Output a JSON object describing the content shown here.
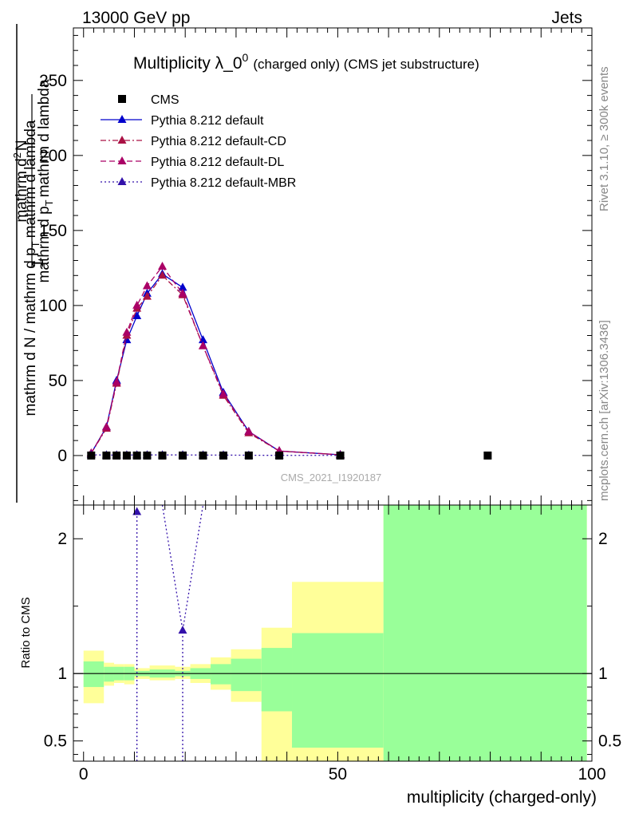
{
  "header": {
    "energy_label": "13000 GeV pp",
    "category_label": "Jets"
  },
  "side_labels": {
    "rivet": "Rivet 3.1.10, ≥ 300k events",
    "mcplots": "mcplots.cern.ch [arXiv:1306.3436]"
  },
  "chart_data": [
    {
      "type": "line",
      "panel": "main",
      "title": "Multiplicity λ_0",
      "title_superscript": "0",
      "title_suffix": "(charged only) (CMS jet substructure)",
      "watermark": "CMS_2021_I1920187",
      "ylabel": {
        "numerator": "1",
        "denominator": "mathrm d N / mathrm d p",
        "denominator_sub": "T",
        "denominator_rest": "mathrm d lambda",
        "frac_numerator": "mathrm d",
        "frac_numerator_sup": "2",
        "frac_numerator_rest": "N",
        "frac_denominator": "mathrm d p",
        "frac_denominator_sub": "T",
        "frac_denominator_rest": "mathrm d lambda"
      },
      "xlim": [
        -2,
        100
      ],
      "ylim": [
        -33,
        285
      ],
      "yticks": [
        0,
        50,
        100,
        150,
        200,
        250
      ],
      "legend": [
        {
          "label": "CMS",
          "style": "data",
          "color": "#000000"
        },
        {
          "label": "Pythia 8.212 default",
          "style": "solid",
          "color": "#0000cc"
        },
        {
          "label": "Pythia 8.212 default-CD",
          "style": "dashdot",
          "color": "#aa1144"
        },
        {
          "label": "Pythia 8.212 default-DL",
          "style": "dashed",
          "color": "#aa0066"
        },
        {
          "label": "Pythia 8.212 default-MBR",
          "style": "dotted",
          "color": "#3311aa"
        }
      ],
      "data_x": [
        1.5,
        4.5,
        6.5,
        8.5,
        10.5,
        12.5,
        15.5,
        19.5,
        23.5,
        27.5,
        32.5,
        38.5,
        50.5,
        79.5
      ],
      "data_y": [
        0,
        0,
        0,
        0,
        0,
        0,
        0,
        0,
        0,
        0,
        0,
        0,
        0,
        0
      ],
      "series": [
        {
          "name": "Pythia 8.212 default",
          "x": [
            1.5,
            4.5,
            6.5,
            8.5,
            10.5,
            12.5,
            15.5,
            19.5,
            23.5,
            27.5,
            32.5,
            38.5,
            50.5
          ],
          "y": [
            1.5,
            19,
            50,
            77,
            93,
            108,
            121,
            112,
            77,
            42,
            16,
            3,
            0.5
          ]
        },
        {
          "name": "Pythia 8.212 default-CD",
          "x": [
            1.5,
            4.5,
            6.5,
            8.5,
            10.5,
            12.5,
            15.5,
            19.5,
            23.5,
            27.5,
            32.5,
            38.5,
            50.5
          ],
          "y": [
            1.5,
            18,
            48,
            80,
            98,
            106,
            120,
            107,
            73,
            40,
            15,
            3,
            0.5
          ]
        },
        {
          "name": "Pythia 8.212 default-DL",
          "x": [
            1.5,
            4.5,
            6.5,
            8.5,
            10.5,
            12.5,
            15.5,
            19.5,
            23.5,
            27.5,
            32.5,
            38.5,
            50.5
          ],
          "y": [
            1.5,
            19,
            49,
            82,
            100,
            113,
            126,
            108,
            73,
            41,
            16,
            3,
            0.5
          ]
        },
        {
          "name": "Pythia 8.212 default-MBR",
          "x": [
            1.5,
            4.5,
            6.5,
            8.5,
            10.5,
            12.5,
            15.5,
            19.5,
            23.5,
            27.5,
            32.5,
            38.5,
            50.5
          ],
          "y": [
            0.5,
            0.3,
            0.3,
            0.3,
            0.4,
            0.4,
            0.4,
            0.4,
            0.3,
            0.3,
            0.2,
            0.1,
            0.1
          ]
        }
      ]
    },
    {
      "type": "area",
      "panel": "ratio",
      "ylabel": "Ratio to CMS",
      "xlabel": "multiplicity (charged-only)",
      "xlim": [
        -2,
        100
      ],
      "ylim": [
        0.35,
        2.25
      ],
      "xticks": [
        0,
        50,
        100
      ],
      "yticks": [
        0.5,
        1,
        2
      ],
      "bins": [
        {
          "lo": 0,
          "hi": 4,
          "green": [
            0.9,
            1.09
          ],
          "yellow": [
            0.78,
            1.17
          ]
        },
        {
          "lo": 4,
          "hi": 6,
          "green": [
            0.94,
            1.05
          ],
          "yellow": [
            0.91,
            1.08
          ]
        },
        {
          "lo": 6,
          "hi": 8,
          "green": [
            0.95,
            1.05
          ],
          "yellow": [
            0.93,
            1.07
          ]
        },
        {
          "lo": 8,
          "hi": 10,
          "green": [
            0.95,
            1.05
          ],
          "yellow": [
            0.92,
            1.07
          ]
        },
        {
          "lo": 10,
          "hi": 13,
          "green": [
            0.98,
            1.02
          ],
          "yellow": [
            0.96,
            1.04
          ]
        },
        {
          "lo": 13,
          "hi": 18,
          "green": [
            0.97,
            1.03
          ],
          "yellow": [
            0.95,
            1.06
          ]
        },
        {
          "lo": 18,
          "hi": 21,
          "green": [
            0.98,
            1.02
          ],
          "yellow": [
            0.96,
            1.05
          ]
        },
        {
          "lo": 21,
          "hi": 25,
          "green": [
            0.96,
            1.04
          ],
          "yellow": [
            0.93,
            1.07
          ]
        },
        {
          "lo": 25,
          "hi": 29,
          "green": [
            0.92,
            1.07
          ],
          "yellow": [
            0.88,
            1.12
          ]
        },
        {
          "lo": 29,
          "hi": 35,
          "green": [
            0.87,
            1.11
          ],
          "yellow": [
            0.79,
            1.18
          ]
        },
        {
          "lo": 35,
          "hi": 41,
          "green": [
            0.72,
            1.19
          ],
          "yellow": [
            0.3,
            1.34
          ]
        },
        {
          "lo": 41,
          "hi": 59,
          "green": [
            0.45,
            1.3
          ],
          "yellow": [
            0.3,
            1.68
          ]
        },
        {
          "lo": 59,
          "hi": 99,
          "green": [
            0.3,
            2.4
          ],
          "yellow": [
            0.3,
            2.4
          ]
        }
      ],
      "mbr_markers": [
        {
          "x": 10.5,
          "y": 2.2
        },
        {
          "x": 19.5,
          "y": 1.32
        }
      ],
      "reference_line": 1
    }
  ]
}
